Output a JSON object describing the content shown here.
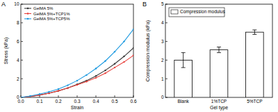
{
  "chart_data": [
    {
      "type": "line",
      "title": "A",
      "x_label": "Strain",
      "y_label": "Stress (kPa)",
      "x": [
        0,
        0.05,
        0.1,
        0.15,
        0.2,
        0.25,
        0.3,
        0.35,
        0.4,
        0.45,
        0.5,
        0.55,
        0.6
      ],
      "series": [
        {
          "name": "GelMA 5%",
          "color": "#3a3a3a",
          "values": [
            0,
            0.1,
            0.25,
            0.45,
            0.7,
            1.0,
            1.4,
            1.8,
            2.3,
            2.9,
            3.6,
            4.4,
            5.3
          ]
        },
        {
          "name": "GelMA 5%+TCP1%",
          "color": "#e8413c",
          "values": [
            0,
            0.1,
            0.25,
            0.45,
            0.7,
            1.0,
            1.35,
            1.7,
            2.1,
            2.6,
            3.2,
            3.8,
            4.5
          ]
        },
        {
          "name": "GelMA 5%+TCP5%",
          "color": "#1e9ae0",
          "values": [
            0,
            0.15,
            0.35,
            0.6,
            0.9,
            1.3,
            1.8,
            2.4,
            3.1,
            3.9,
            4.9,
            6.0,
            7.3
          ]
        }
      ],
      "xlim": [
        0,
        0.6
      ],
      "xticks": [
        {
          "value": 0,
          "label": "0.0"
        },
        0.1,
        0.2,
        0.3,
        0.4,
        0.5,
        0.6
      ],
      "ylim": [
        0,
        10
      ],
      "yticks": [
        0,
        2,
        4,
        6,
        8,
        10
      ],
      "marker": "circle",
      "grid": false,
      "legend": "upper left"
    },
    {
      "type": "bar",
      "title": "B",
      "x_label": "Gel type",
      "y_label": "Compression modulus (kPa)",
      "categories": [
        "Blank",
        "1%TCP",
        "5%TCP"
      ],
      "series": [
        {
          "name": "Compression modulus",
          "color": "#ffffff",
          "values": [
            2.0,
            2.55,
            3.5
          ],
          "errors": [
            0.4,
            0.15,
            0.12
          ]
        }
      ],
      "ylim": [
        0,
        5
      ],
      "yticks": [
        0,
        1,
        2,
        3,
        4,
        5
      ],
      "grid": false,
      "legend": "upper left"
    }
  ]
}
